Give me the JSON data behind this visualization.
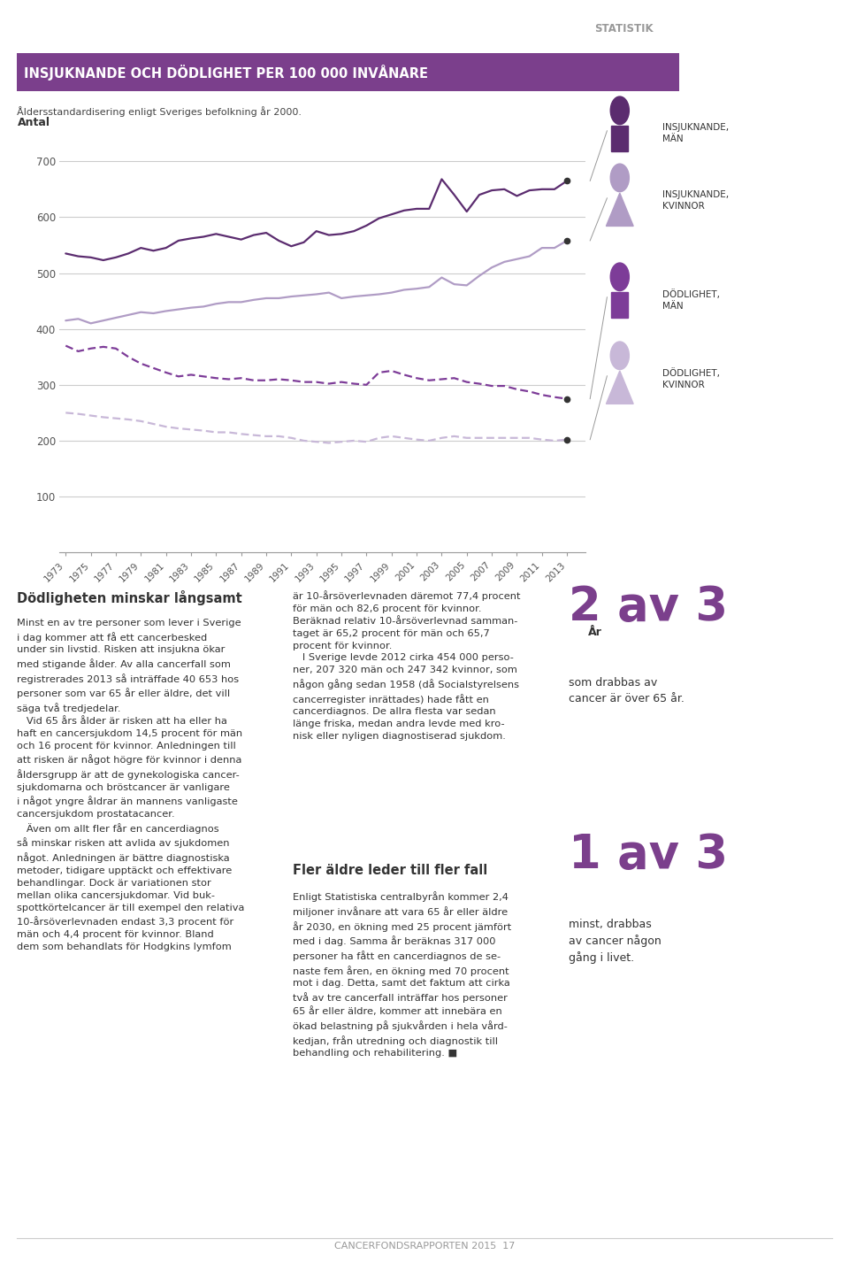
{
  "title": "INSJUKNANDE OCH DÖDLIGHET PER 100 000 INVÅNARE",
  "subtitle": "Åldersstandardisering enligt Sveriges befolkning år 2000.",
  "ylabel": "Antal",
  "xlabel": "År",
  "years": [
    1973,
    1975,
    1977,
    1979,
    1981,
    1983,
    1985,
    1987,
    1989,
    1991,
    1993,
    1995,
    1997,
    1999,
    2001,
    2003,
    2005,
    2007,
    2009,
    2011,
    2013
  ],
  "years_all": [
    1973,
    1974,
    1975,
    1976,
    1977,
    1978,
    1979,
    1980,
    1981,
    1982,
    1983,
    1984,
    1985,
    1986,
    1987,
    1988,
    1989,
    1990,
    1991,
    1992,
    1993,
    1994,
    1995,
    1996,
    1997,
    1998,
    1999,
    2000,
    2001,
    2002,
    2003,
    2004,
    2005,
    2006,
    2007,
    2008,
    2009,
    2010,
    2011,
    2012,
    2013
  ],
  "insjuknande_man": [
    535,
    530,
    528,
    523,
    528,
    535,
    545,
    540,
    545,
    558,
    562,
    565,
    570,
    565,
    560,
    568,
    572,
    558,
    548,
    555,
    575,
    568,
    570,
    575,
    585,
    598,
    605,
    612,
    615,
    615,
    668,
    640,
    610,
    640,
    648,
    650,
    638,
    648,
    650,
    650,
    665
  ],
  "insjuknande_kvinnor": [
    415,
    418,
    410,
    415,
    420,
    425,
    430,
    428,
    432,
    435,
    438,
    440,
    445,
    448,
    448,
    452,
    455,
    455,
    458,
    460,
    462,
    465,
    455,
    458,
    460,
    462,
    465,
    470,
    472,
    475,
    492,
    480,
    478,
    495,
    510,
    520,
    525,
    530,
    545,
    545,
    558
  ],
  "dodlighet_man": [
    370,
    360,
    365,
    368,
    365,
    350,
    338,
    330,
    322,
    315,
    318,
    315,
    312,
    310,
    312,
    308,
    308,
    310,
    308,
    305,
    305,
    302,
    305,
    302,
    300,
    322,
    325,
    318,
    312,
    308,
    310,
    312,
    305,
    302,
    298,
    298,
    292,
    288,
    282,
    278,
    275
  ],
  "dodlighet_kvinnor": [
    250,
    248,
    245,
    242,
    240,
    238,
    235,
    230,
    225,
    222,
    220,
    218,
    215,
    215,
    212,
    210,
    208,
    208,
    205,
    200,
    198,
    196,
    198,
    200,
    198,
    205,
    208,
    205,
    202,
    200,
    205,
    208,
    205,
    205,
    205,
    205,
    205,
    205,
    202,
    200,
    202
  ],
  "color_man_solid": "#5b2c6f",
  "color_kvinnor_solid": "#b09cc5",
  "color_man_dashed": "#7d3c98",
  "color_kvinnor_dashed": "#c8b8d8",
  "title_bg_color": "#7b3f8c",
  "title_text_color": "#ffffff",
  "axis_color": "#999999",
  "tick_color": "#555555",
  "grid_color": "#cccccc",
  "background_color": "#ffffff",
  "ylim": [
    0,
    750
  ],
  "yticks": [
    100,
    200,
    300,
    400,
    500,
    600,
    700
  ],
  "body_text_heading1": "Dödligheten minskar långsamt",
  "body_text_heading2": "Fler äldre leder till fler fall",
  "stat1": "2 av 3",
  "stat1_sub": "som drabbas av\ncancer är över 65 år.",
  "stat2": "1 av 3",
  "stat2_sub": "minst, drabbas\nav cancer någon\ngång i livet.",
  "footer": "CANCERFONDSRAPPORTEN 2015  17",
  "statistik_label": "STATISTIK"
}
